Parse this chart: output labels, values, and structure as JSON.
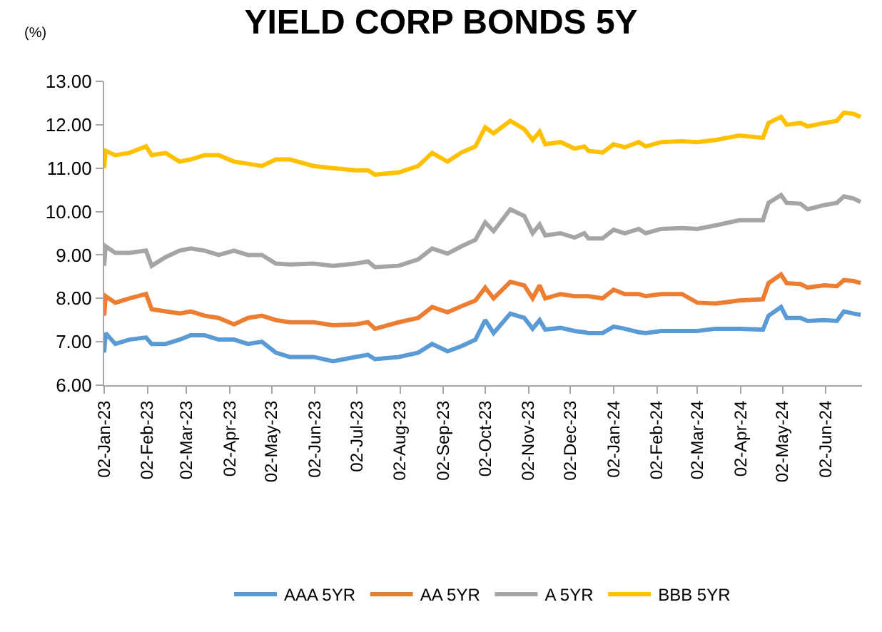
{
  "chart_data": {
    "type": "line",
    "title": "YIELD CORP BONDS 5Y",
    "ylabel": "(%)",
    "x": [
      "2023-01-02",
      "2023-01-03",
      "2023-01-10",
      "2023-01-20",
      "2023-02-01",
      "2023-02-05",
      "2023-02-15",
      "2023-02-25",
      "2023-03-05",
      "2023-03-15",
      "2023-03-25",
      "2023-04-05",
      "2023-04-15",
      "2023-04-25",
      "2023-05-05",
      "2023-05-15",
      "2023-06-01",
      "2023-06-15",
      "2023-07-01",
      "2023-07-10",
      "2023-07-15",
      "2023-08-01",
      "2023-08-15",
      "2023-08-25",
      "2023-09-05",
      "2023-09-15",
      "2023-09-25",
      "2023-10-02",
      "2023-10-08",
      "2023-10-20",
      "2023-10-30",
      "2023-11-05",
      "2023-11-10",
      "2023-11-14",
      "2023-11-25",
      "2023-12-05",
      "2023-12-12",
      "2023-12-15",
      "2023-12-25",
      "2024-01-02",
      "2024-01-10",
      "2024-01-20",
      "2024-01-25",
      "2024-02-05",
      "2024-02-20",
      "2024-03-02",
      "2024-03-15",
      "2024-04-01",
      "2024-04-18",
      "2024-04-22",
      "2024-05-01",
      "2024-05-05",
      "2024-05-15",
      "2024-05-20",
      "2024-06-01",
      "2024-06-10",
      "2024-06-15",
      "2024-06-22",
      "2024-06-27"
    ],
    "series": [
      {
        "name": "AAA 5YR",
        "color": "#5b9bd5",
        "values": [
          6.75,
          7.2,
          6.95,
          7.05,
          7.1,
          6.95,
          6.95,
          7.05,
          7.15,
          7.15,
          7.05,
          7.05,
          6.95,
          7.0,
          6.75,
          6.65,
          6.65,
          6.55,
          6.65,
          6.7,
          6.6,
          6.65,
          6.75,
          6.95,
          6.78,
          6.9,
          7.05,
          7.5,
          7.2,
          7.65,
          7.55,
          7.3,
          7.5,
          7.28,
          7.32,
          7.25,
          7.22,
          7.2,
          7.2,
          7.35,
          7.3,
          7.22,
          7.2,
          7.25,
          7.25,
          7.25,
          7.3,
          7.3,
          7.28,
          7.6,
          7.8,
          7.55,
          7.55,
          7.48,
          7.5,
          7.48,
          7.7,
          7.65,
          7.62
        ]
      },
      {
        "name": "AA 5YR",
        "color": "#ed7d31",
        "values": [
          7.6,
          8.05,
          7.9,
          8.0,
          8.1,
          7.75,
          7.7,
          7.65,
          7.7,
          7.6,
          7.55,
          7.4,
          7.55,
          7.6,
          7.5,
          7.45,
          7.45,
          7.38,
          7.4,
          7.45,
          7.3,
          7.45,
          7.55,
          7.8,
          7.68,
          7.82,
          7.95,
          8.25,
          8.0,
          8.38,
          8.3,
          8.0,
          8.3,
          8.0,
          8.1,
          8.05,
          8.05,
          8.05,
          8.0,
          8.2,
          8.1,
          8.1,
          8.05,
          8.1,
          8.1,
          7.9,
          7.88,
          7.95,
          7.98,
          8.35,
          8.55,
          8.35,
          8.33,
          8.25,
          8.3,
          8.28,
          8.42,
          8.4,
          8.35
        ]
      },
      {
        "name": "A 5YR",
        "color": "#a5a5a5",
        "values": [
          8.75,
          9.2,
          9.05,
          9.05,
          9.1,
          8.75,
          8.95,
          9.1,
          9.15,
          9.1,
          9.0,
          9.1,
          9.0,
          9.0,
          8.8,
          8.78,
          8.8,
          8.75,
          8.8,
          8.85,
          8.72,
          8.75,
          8.9,
          9.15,
          9.03,
          9.2,
          9.35,
          9.75,
          9.55,
          10.05,
          9.9,
          9.5,
          9.7,
          9.45,
          9.5,
          9.4,
          9.5,
          9.38,
          9.38,
          9.58,
          9.5,
          9.6,
          9.5,
          9.6,
          9.62,
          9.6,
          9.68,
          9.8,
          9.8,
          10.2,
          10.38,
          10.2,
          10.18,
          10.05,
          10.15,
          10.2,
          10.35,
          10.3,
          10.22
        ]
      },
      {
        "name": "BBB 5YR",
        "color": "#ffc000",
        "values": [
          11.0,
          11.4,
          11.3,
          11.35,
          11.5,
          11.3,
          11.35,
          11.15,
          11.2,
          11.3,
          11.3,
          11.15,
          11.1,
          11.05,
          11.2,
          11.2,
          11.05,
          11.0,
          10.95,
          10.95,
          10.85,
          10.9,
          11.05,
          11.35,
          11.15,
          11.36,
          11.5,
          11.94,
          11.8,
          12.09,
          11.9,
          11.65,
          11.84,
          11.55,
          11.6,
          11.45,
          11.5,
          11.4,
          11.36,
          11.55,
          11.48,
          11.6,
          11.5,
          11.6,
          11.62,
          11.6,
          11.65,
          11.75,
          11.7,
          12.04,
          12.18,
          12.0,
          12.04,
          11.96,
          12.04,
          12.09,
          12.28,
          12.25,
          12.18
        ]
      }
    ],
    "xlim": [
      "2023-01-02",
      "2024-06-28"
    ],
    "xticks": [
      {
        "value": "2023-01-02",
        "label": "02-Jan-23"
      },
      {
        "value": "2023-02-02",
        "label": "02-Feb-23"
      },
      {
        "value": "2023-03-02",
        "label": "02-Mar-23"
      },
      {
        "value": "2023-04-02",
        "label": "02-Apr-23"
      },
      {
        "value": "2023-05-02",
        "label": "02-May-23"
      },
      {
        "value": "2023-06-02",
        "label": "02-Jun-23"
      },
      {
        "value": "2023-07-02",
        "label": "02-Jul-23"
      },
      {
        "value": "2023-08-02",
        "label": "02-Aug-23"
      },
      {
        "value": "2023-09-02",
        "label": "02-Sep-23"
      },
      {
        "value": "2023-10-02",
        "label": "02-Oct-23"
      },
      {
        "value": "2023-11-02",
        "label": "02-Nov-23"
      },
      {
        "value": "2023-12-02",
        "label": "02-Dec-23"
      },
      {
        "value": "2024-01-02",
        "label": "02-Jan-24"
      },
      {
        "value": "2024-02-02",
        "label": "02-Feb-24"
      },
      {
        "value": "2024-03-02",
        "label": "02-Mar-24"
      },
      {
        "value": "2024-04-02",
        "label": "02-Apr-24"
      },
      {
        "value": "2024-05-02",
        "label": "02-May-24"
      },
      {
        "value": "2024-06-02",
        "label": "02-Jun-24"
      }
    ],
    "ylim": [
      6,
      13
    ],
    "yticks": [
      {
        "value": 6,
        "label": "6.00"
      },
      {
        "value": 7,
        "label": "7.00"
      },
      {
        "value": 8,
        "label": "8.00"
      },
      {
        "value": 9,
        "label": "9.00"
      },
      {
        "value": 10,
        "label": "10.00"
      },
      {
        "value": 11,
        "label": "11.00"
      },
      {
        "value": 12,
        "label": "12.00"
      },
      {
        "value": 13,
        "label": "13.00"
      }
    ],
    "legend": "bottom",
    "marker": "none",
    "line_style": "solid"
  }
}
